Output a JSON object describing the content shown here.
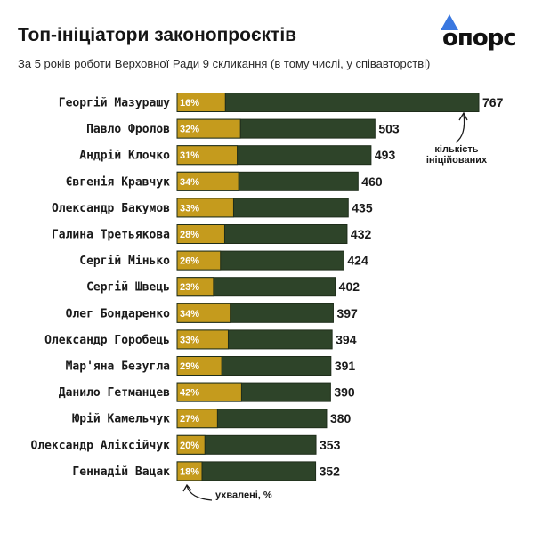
{
  "header": {
    "title": "Топ-ініціатори законопроєктів",
    "subtitle": "За 5 років роботи Верховної Ради 9 скликання (в тому числі, у співавторстві)"
  },
  "logo": {
    "text": "опорс"
  },
  "colors": {
    "total_bar": "#2e4429",
    "approved_bar": "#c59b1d",
    "logo_triangle": "#3a78e0"
  },
  "chart_data": {
    "type": "bar",
    "orientation": "horizontal",
    "stacked": false,
    "categories": [
      "Георгій Мазурашу",
      "Павло Фролов",
      "Андрій Клочко",
      "Євгенія Кравчук",
      "Олександр Бакумов",
      "Галина Третьякова",
      "Сергій Мінько",
      "Сергій Швець",
      "Олег Бондаренко",
      "Олександр Горобець",
      "Мар'яна Безугла",
      "Данило Гетманцев",
      "Юрій Камельчук",
      "Олександр Аліксійчук",
      "Геннадій Вацак"
    ],
    "series": [
      {
        "name": "кількість ініційованих",
        "values": [
          767,
          503,
          493,
          460,
          435,
          432,
          424,
          402,
          397,
          394,
          391,
          390,
          380,
          353,
          352
        ]
      },
      {
        "name": "ухвалені, %",
        "values": [
          16,
          32,
          31,
          34,
          33,
          28,
          26,
          23,
          34,
          33,
          29,
          42,
          27,
          20,
          18
        ]
      }
    ],
    "annotations": [
      "кількість ініційованих",
      "ухвалені, %"
    ]
  }
}
